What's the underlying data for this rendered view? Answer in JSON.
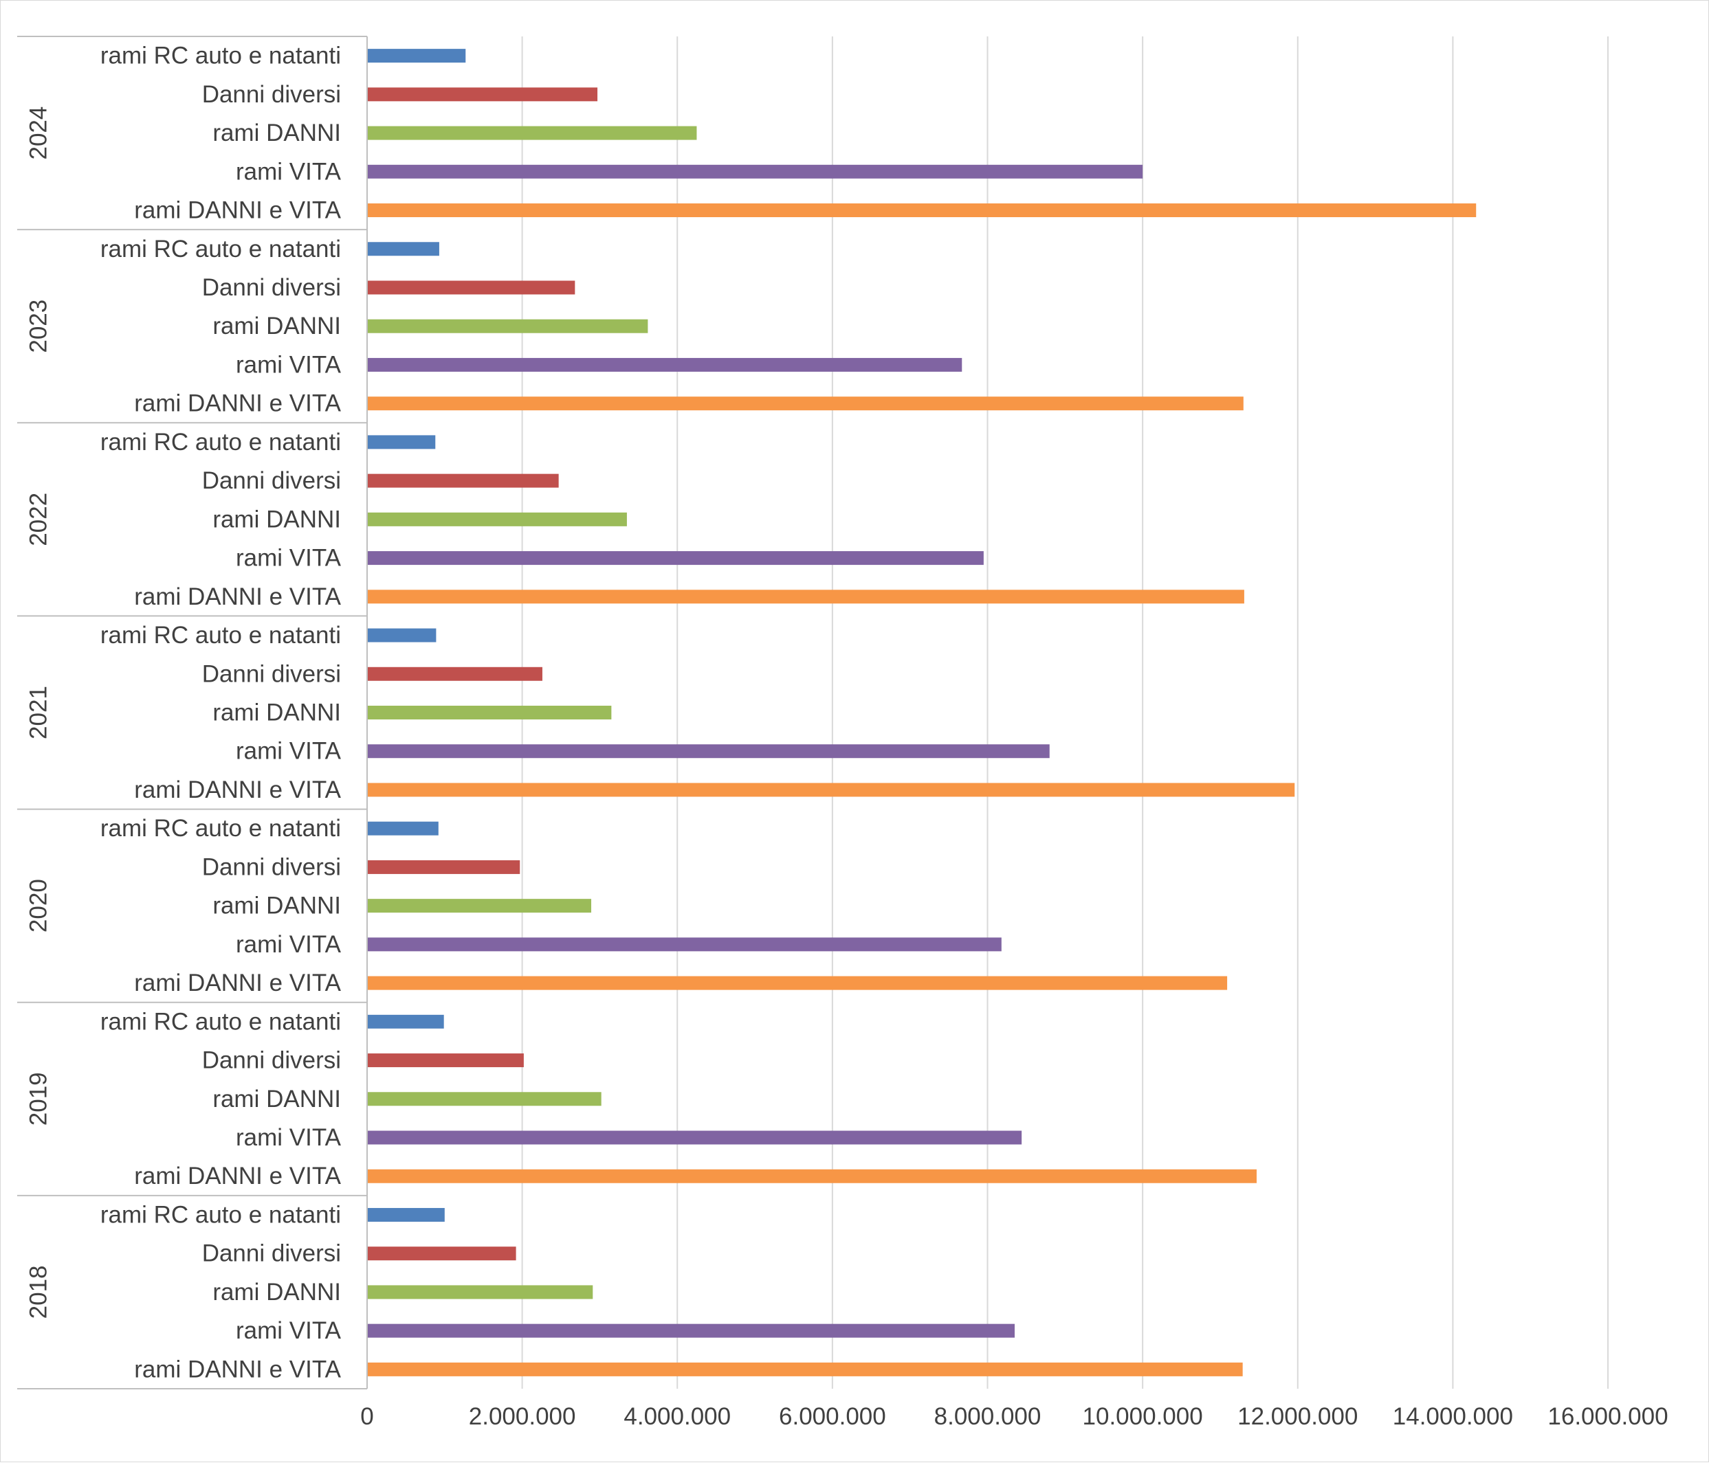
{
  "chart_data": {
    "type": "bar",
    "orientation": "horizontal",
    "title": "",
    "xlabel": "",
    "ylabel": "",
    "xlim": [
      0,
      16000000
    ],
    "x_ticks": [
      0,
      2000000,
      4000000,
      6000000,
      8000000,
      10000000,
      12000000,
      14000000,
      16000000
    ],
    "x_tick_labels": [
      "0",
      "2.000.000",
      "4.000.000",
      "6.000.000",
      "8.000.000",
      "10.000.000",
      "12.000.000",
      "14.000.000",
      "16.000.000"
    ],
    "grid": "vertical",
    "legend": "none",
    "categories": [
      "rami RC auto e natanti",
      "Danni diversi",
      "rami DANNI",
      "rami VITA",
      "rami DANNI e VITA"
    ],
    "colors": {
      "rami RC auto e natanti": "#4f81bd",
      "Danni diversi": "#c0504d",
      "rami DANNI": "#9bbb59",
      "rami VITA": "#8064a2",
      "rami DANNI e VITA": "#f79646"
    },
    "groups": [
      {
        "year": "2024",
        "values": [
          1270000,
          2970000,
          4250000,
          10000000,
          14300000
        ]
      },
      {
        "year": "2023",
        "values": [
          930000,
          2680000,
          3620000,
          7670000,
          11300000
        ]
      },
      {
        "year": "2022",
        "values": [
          880000,
          2470000,
          3350000,
          7950000,
          11310000
        ]
      },
      {
        "year": "2021",
        "values": [
          890000,
          2260000,
          3150000,
          8800000,
          11960000
        ]
      },
      {
        "year": "2020",
        "values": [
          920000,
          1970000,
          2890000,
          8180000,
          11090000
        ]
      },
      {
        "year": "2019",
        "values": [
          990000,
          2020000,
          3020000,
          8440000,
          11470000
        ]
      },
      {
        "year": "2018",
        "values": [
          1000000,
          1920000,
          2910000,
          8350000,
          11290000
        ]
      }
    ]
  }
}
